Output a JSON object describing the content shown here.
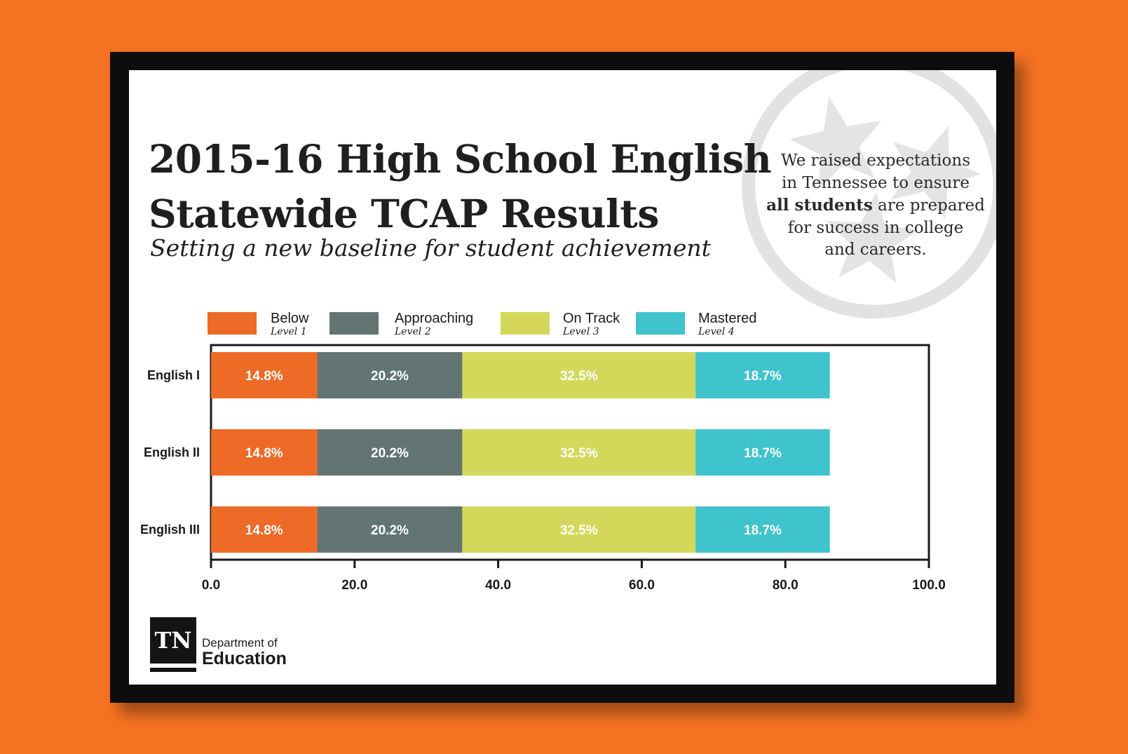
{
  "header": {
    "title_line1": "2015-16 High School English",
    "title_line2": "Statewide TCAP Results",
    "subtitle": "Setting a new baseline for student achievement"
  },
  "note": {
    "line1": "We raised expectations",
    "line2": "in Tennessee to ensure",
    "bold": "all students",
    "line3_rest": " are prepared",
    "line4": "for success in college",
    "line5": "and careers."
  },
  "logo": {
    "mark": "TN",
    "line1": "Department of",
    "line2": "Education"
  },
  "chart_data": {
    "type": "bar",
    "orientation": "horizontal",
    "stacked": true,
    "categories": [
      "English I",
      "English II",
      "English III"
    ],
    "series": [
      {
        "name": "Below",
        "sublabel": "Level 1",
        "values": [
          14.8,
          14.8,
          14.8
        ],
        "color": "#ee6a27"
      },
      {
        "name": "Approaching",
        "sublabel": "Level 2",
        "values": [
          20.2,
          20.2,
          20.2
        ],
        "color": "#627572"
      },
      {
        "name": "On Track",
        "sublabel": "Level 3",
        "values": [
          32.5,
          32.5,
          32.5
        ],
        "color": "#d4d85a"
      },
      {
        "name": "Mastered",
        "sublabel": "Level 4",
        "values": [
          18.7,
          18.7,
          18.7
        ],
        "color": "#3fc3cd"
      }
    ],
    "value_suffix": "%",
    "xlim": [
      0,
      100
    ],
    "xticks": [
      "0.0",
      "20.0",
      "40.0",
      "60.0",
      "80.0",
      "100.0"
    ],
    "legend_position": "top",
    "grid": false
  }
}
